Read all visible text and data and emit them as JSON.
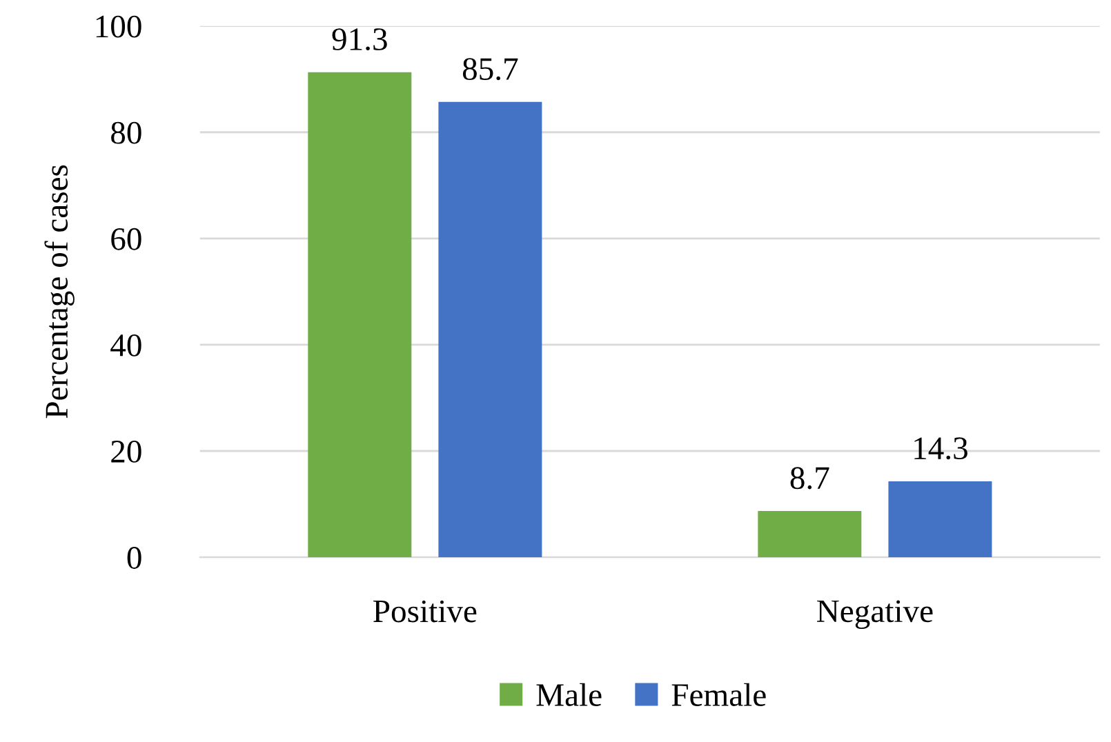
{
  "chart_data": {
    "type": "bar",
    "ylabel": "Percentage of cases",
    "categories": [
      "Positive",
      "Negative"
    ],
    "series": [
      {
        "name": "Male",
        "color": "#70ad47",
        "values": [
          91.3,
          8.7
        ]
      },
      {
        "name": "Female",
        "color": "#4472c4",
        "values": [
          85.7,
          14.3
        ]
      }
    ],
    "ylim": [
      0,
      100
    ],
    "yticks": [
      0,
      20,
      40,
      60,
      80,
      100
    ],
    "grid": "y",
    "legend": "bottom",
    "data_labels": true
  }
}
